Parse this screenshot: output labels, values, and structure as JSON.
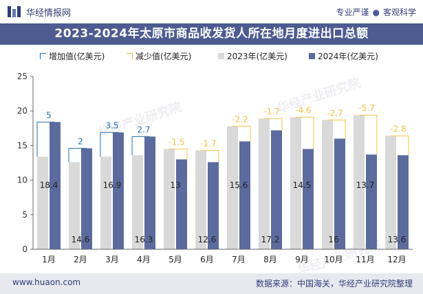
{
  "header": {
    "brand": "华经情报网",
    "slogan_left": "专业严谨",
    "slogan_sep": "●",
    "slogan_right": "客观科学"
  },
  "footer": {
    "url": "www.huaon.com",
    "source": "数据来源：中国海关，华经产业研究院整理"
  },
  "watermark": "华经产业研究院",
  "colors": {
    "title_bg": "#4d5b91",
    "bar_2023": "#d9d9d9",
    "bar_2024": "#5b6b9e",
    "increase": "#1f6fb2",
    "decrease": "#f5c242",
    "footer_bg": "#e7e9ef"
  },
  "chart_data": {
    "type": "bar",
    "title": "2023-2024年太原市商品收发货人所在地月度进出口总额",
    "categories": [
      "1月",
      "2月",
      "3月",
      "4月",
      "5月",
      "6月",
      "7月",
      "8月",
      "9月",
      "10月",
      "11月",
      "12月"
    ],
    "series": [
      {
        "name": "2023年(亿美元)",
        "values": [
          13.4,
          12.6,
          13.4,
          13.6,
          14.5,
          14.3,
          17.8,
          18.9,
          19.1,
          18.7,
          19.4,
          16.4
        ]
      },
      {
        "name": "2024年(亿美元)",
        "values": [
          18.4,
          14.6,
          16.9,
          16.3,
          13,
          12.6,
          15.6,
          17.2,
          14.5,
          16,
          13.7,
          13.6
        ]
      }
    ],
    "change_series": [
      {
        "name": "增加值(亿美元)",
        "labels": [
          "5",
          "2",
          "3.5",
          "2.7",
          null,
          null,
          null,
          null,
          null,
          null,
          null,
          null
        ]
      },
      {
        "name": "减少值(亿美元)",
        "labels": [
          null,
          null,
          null,
          null,
          "-1.5",
          "-1.7",
          "-2.2",
          "-1.7",
          "-4.6",
          "-2.7",
          "-5.7",
          "-2.8"
        ]
      }
    ],
    "y_ticks": [
      "0",
      "5",
      "10",
      "15",
      "20",
      "25"
    ],
    "ylim": [
      0,
      25
    ],
    "grid": false,
    "legend_position": "top"
  }
}
